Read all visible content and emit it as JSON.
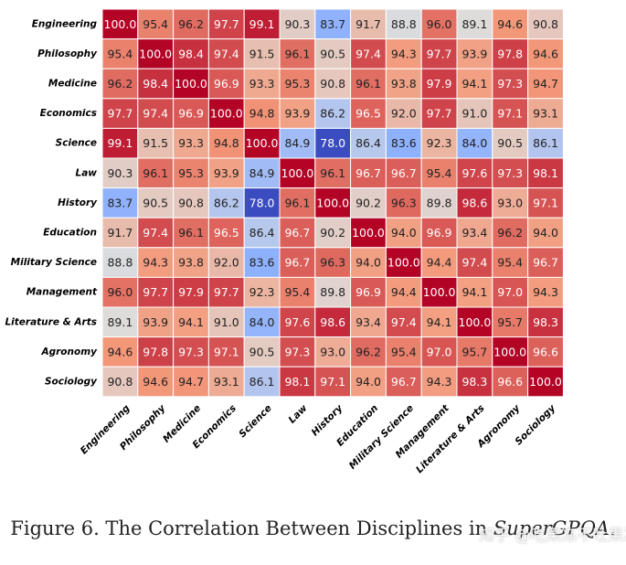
{
  "chart_data": {
    "type": "heatmap",
    "title": "",
    "xlabel": "",
    "ylabel": "",
    "categories": [
      "Engineering",
      "Philosophy",
      "Medicine",
      "Economics",
      "Science",
      "Law",
      "History",
      "Education",
      "Military Science",
      "Management",
      "Literature & Arts",
      "Agronomy",
      "Sociology"
    ],
    "values": [
      [
        100.0,
        95.4,
        96.2,
        97.7,
        99.1,
        90.3,
        83.7,
        91.7,
        88.8,
        96.0,
        89.1,
        94.6,
        90.8
      ],
      [
        95.4,
        100.0,
        98.4,
        97.4,
        91.5,
        96.1,
        90.5,
        97.4,
        94.3,
        97.7,
        93.9,
        97.8,
        94.6
      ],
      [
        96.2,
        98.4,
        100.0,
        96.9,
        93.3,
        95.3,
        90.8,
        96.1,
        93.8,
        97.9,
        94.1,
        97.3,
        94.7
      ],
      [
        97.7,
        97.4,
        96.9,
        100.0,
        94.8,
        93.9,
        86.2,
        96.5,
        92.0,
        97.7,
        91.0,
        97.1,
        93.1
      ],
      [
        99.1,
        91.5,
        93.3,
        94.8,
        100.0,
        84.9,
        78.0,
        86.4,
        83.6,
        92.3,
        84.0,
        90.5,
        86.1
      ],
      [
        90.3,
        96.1,
        95.3,
        93.9,
        84.9,
        100.0,
        96.1,
        96.7,
        96.7,
        95.4,
        97.6,
        97.3,
        98.1
      ],
      [
        83.7,
        90.5,
        90.8,
        86.2,
        78.0,
        96.1,
        100.0,
        90.2,
        96.3,
        89.8,
        98.6,
        93.0,
        97.1
      ],
      [
        91.7,
        97.4,
        96.1,
        96.5,
        86.4,
        96.7,
        90.2,
        100.0,
        94.0,
        96.9,
        93.4,
        96.2,
        94.0
      ],
      [
        88.8,
        94.3,
        93.8,
        92.0,
        83.6,
        96.7,
        96.3,
        94.0,
        100.0,
        94.4,
        97.4,
        95.4,
        96.7
      ],
      [
        96.0,
        97.7,
        97.9,
        97.7,
        92.3,
        95.4,
        89.8,
        96.9,
        94.4,
        100.0,
        94.1,
        97.0,
        94.3
      ],
      [
        89.1,
        93.9,
        94.1,
        91.0,
        84.0,
        97.6,
        98.6,
        93.4,
        97.4,
        94.1,
        100.0,
        95.7,
        98.3
      ],
      [
        94.6,
        97.8,
        97.3,
        97.1,
        90.5,
        97.3,
        93.0,
        96.2,
        95.4,
        97.0,
        95.7,
        100.0,
        96.6
      ],
      [
        90.8,
        94.6,
        94.7,
        93.1,
        86.1,
        98.1,
        97.1,
        94.0,
        96.7,
        94.3,
        98.3,
        96.6,
        100.0
      ]
    ],
    "value_range": [
      78.0,
      100.0
    ],
    "colormap": "coolwarm",
    "colors": {
      "low": "#3b4cc0",
      "mid": "#dddddd",
      "high": "#b40426",
      "grid_line": "#ffffff"
    }
  },
  "caption": {
    "prefix": "Figure 6. The Correlation Between Disciplines in ",
    "emphasis": "SuperGPQA",
    "suffix": "."
  },
  "watermark": "知乎 @吃果冻不吐果冻皮"
}
